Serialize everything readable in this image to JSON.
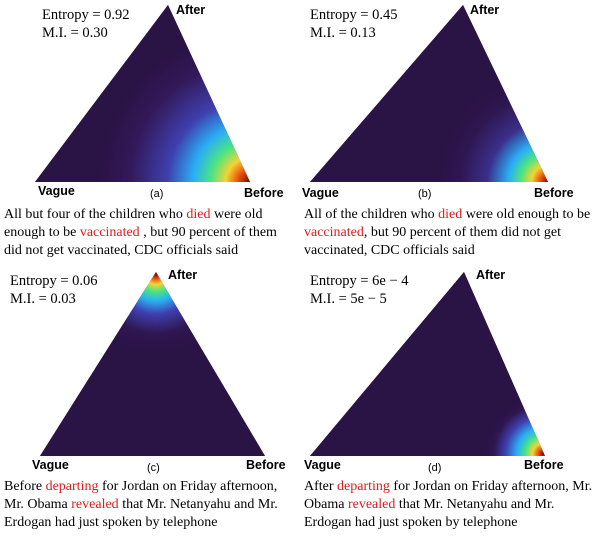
{
  "panels": [
    {
      "id": "a",
      "entropy": "Entropy = 0.92",
      "mi": "M.I. = 0.30",
      "vertex_top": "After",
      "vertex_left": "Vague",
      "vertex_right": "Before",
      "sublabel": "(a)",
      "caption": [
        {
          "t": "All but four of the children who ",
          "hl": false
        },
        {
          "t": "died",
          "hl": true
        },
        {
          "t": " were old enough to be ",
          "hl": false
        },
        {
          "t": "vaccinated",
          "hl": true
        },
        {
          "t": " , but 90 percent of them did not get vaccinated, CDC officials said",
          "hl": false
        }
      ],
      "heat": {
        "peak_vertex": "Before",
        "spread": "wide"
      }
    },
    {
      "id": "b",
      "entropy": "Entropy = 0.45",
      "mi": "M.I. = 0.13",
      "vertex_top": "After",
      "vertex_left": "Vague",
      "vertex_right": "Before",
      "sublabel": "(b)",
      "caption": [
        {
          "t": "All of the children who ",
          "hl": false
        },
        {
          "t": "died",
          "hl": true
        },
        {
          "t": " were old enough to be ",
          "hl": false
        },
        {
          "t": "vaccinated",
          "hl": true
        },
        {
          "t": ", but 90 percent of them did not get vaccinated, CDC officials said",
          "hl": false
        }
      ],
      "heat": {
        "peak_vertex": "Before",
        "spread": "medium"
      }
    },
    {
      "id": "c",
      "entropy": "Entropy = 0.06",
      "mi": "M.I. = 0.03",
      "vertex_top": "After",
      "vertex_left": "Vague",
      "vertex_right": "Before",
      "sublabel": "(c)",
      "caption": [
        {
          "t": "Before ",
          "hl": false
        },
        {
          "t": "departing",
          "hl": true
        },
        {
          "t": " for Jordan on Friday afternoon, Mr. Obama ",
          "hl": false
        },
        {
          "t": "revealed",
          "hl": true
        },
        {
          "t": " that Mr. Netanyahu and Mr. Erdogan had just spoken by telephone",
          "hl": false
        }
      ],
      "heat": {
        "peak_vertex": "After",
        "spread": "narrow"
      }
    },
    {
      "id": "d",
      "entropy": "Entropy = 6e − 4",
      "mi": "M.I. = 5e − 5",
      "vertex_top": "After",
      "vertex_left": "Vague",
      "vertex_right": "Before",
      "sublabel": "(d)",
      "caption": [
        {
          "t": "After ",
          "hl": false
        },
        {
          "t": "departing",
          "hl": true
        },
        {
          "t": " for Jordan on Friday afternoon, Mr. Obama ",
          "hl": false
        },
        {
          "t": "revealed",
          "hl": true
        },
        {
          "t": " that Mr. Netanyahu and Mr. Erdogan had just spoken by telephone",
          "hl": false
        }
      ],
      "heat": {
        "peak_vertex": "Before",
        "spread": "narrow"
      }
    }
  ],
  "colors": {
    "background_dark": "#2a1345",
    "highlight_red": "#e01a1a"
  }
}
